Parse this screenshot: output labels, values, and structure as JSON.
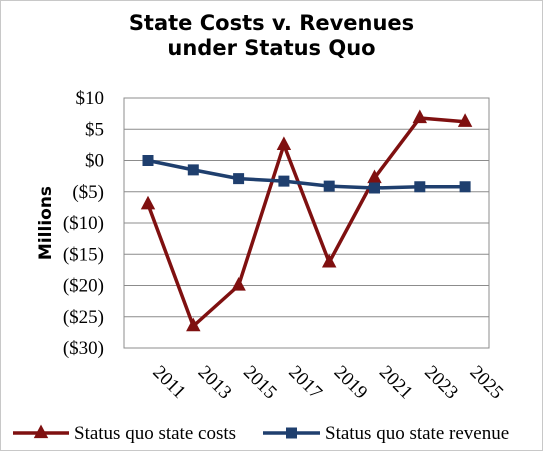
{
  "chart_data": {
    "type": "line",
    "title_line1": "State Costs v. Revenues",
    "title_line2": "under Status Quo",
    "ylabel": "Millions",
    "xlabel": "",
    "ylim": [
      -30,
      10
    ],
    "y_ticks": [
      10,
      5,
      0,
      -5,
      -10,
      -15,
      -20,
      -25,
      -30
    ],
    "y_tick_labels": [
      "$10",
      "$5",
      "$0",
      "($5)",
      "($10)",
      "($15)",
      "($20)",
      "($25)",
      "($30)"
    ],
    "categories": [
      "2011",
      "2013",
      "2015",
      "2017",
      "2019",
      "2021",
      "2023",
      "2025"
    ],
    "grid": true,
    "legend_position": "bottom",
    "series": [
      {
        "name": "Status quo state costs",
        "color": "#7f1010",
        "marker": "triangle",
        "values": [
          -7,
          -26.5,
          -20,
          2.5,
          -16.3,
          -2.8,
          6.8,
          6.2
        ]
      },
      {
        "name": "Status quo state revenue",
        "color": "#1f3f6e",
        "marker": "square",
        "values": [
          0,
          -1.5,
          -2.9,
          -3.3,
          -4.1,
          -4.4,
          -4.2,
          -4.2
        ]
      }
    ]
  }
}
